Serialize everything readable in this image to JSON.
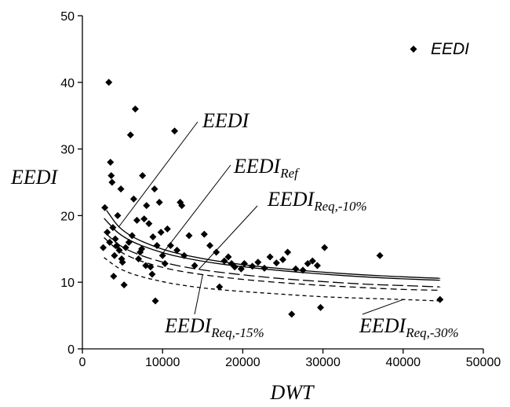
{
  "chart_data": {
    "type": "scatter",
    "x_axis": {
      "title": "DWT",
      "range": [
        0,
        50000
      ],
      "ticks": [
        0,
        10000,
        20000,
        30000,
        40000,
        50000
      ],
      "tick_labels": [
        "0",
        "10000",
        "20000",
        "30000",
        "40000",
        "50000"
      ]
    },
    "y_axis": {
      "title": "EEDI",
      "range": [
        0,
        50
      ],
      "ticks": [
        0,
        10,
        20,
        30,
        40,
        50
      ],
      "tick_labels": [
        "0",
        "10",
        "20",
        "30",
        "40",
        "50"
      ]
    },
    "grid": false,
    "legend": {
      "position": "top-right",
      "entries": [
        {
          "label": "EEDI",
          "marker": "diamond"
        }
      ]
    },
    "series": [
      {
        "name": "EEDI",
        "kind": "points",
        "marker": "diamond",
        "color": "#000000",
        "points": [
          [
            2600,
            15.2
          ],
          [
            2800,
            21.2
          ],
          [
            3100,
            17.5
          ],
          [
            3300,
            40.0
          ],
          [
            3400,
            16.0
          ],
          [
            3500,
            28.0
          ],
          [
            3600,
            26.0
          ],
          [
            3700,
            25.0
          ],
          [
            3800,
            18.2
          ],
          [
            3900,
            10.9
          ],
          [
            4000,
            14.0
          ],
          [
            4100,
            16.5
          ],
          [
            4300,
            15.5
          ],
          [
            4400,
            20.0
          ],
          [
            4600,
            14.8
          ],
          [
            4800,
            24.0
          ],
          [
            4900,
            13.5
          ],
          [
            5000,
            13.0
          ],
          [
            5200,
            9.6
          ],
          [
            5400,
            15.2
          ],
          [
            5800,
            16.0
          ],
          [
            6000,
            32.1
          ],
          [
            6200,
            17.0
          ],
          [
            6400,
            22.5
          ],
          [
            6600,
            36.0
          ],
          [
            6800,
            19.3
          ],
          [
            7000,
            13.5
          ],
          [
            7200,
            14.5
          ],
          [
            7400,
            15.0
          ],
          [
            7500,
            26.0
          ],
          [
            7700,
            19.5
          ],
          [
            7900,
            12.5
          ],
          [
            8000,
            21.5
          ],
          [
            8300,
            18.8
          ],
          [
            8500,
            12.3
          ],
          [
            8700,
            11.2
          ],
          [
            8800,
            16.8
          ],
          [
            9000,
            24.0
          ],
          [
            9100,
            7.2
          ],
          [
            9300,
            15.5
          ],
          [
            9600,
            22.0
          ],
          [
            9800,
            17.5
          ],
          [
            10000,
            14.0
          ],
          [
            10300,
            12.8
          ],
          [
            10600,
            18.0
          ],
          [
            11000,
            15.5
          ],
          [
            11500,
            32.7
          ],
          [
            11800,
            14.8
          ],
          [
            12200,
            22.0
          ],
          [
            12400,
            21.5
          ],
          [
            12700,
            14.0
          ],
          [
            13300,
            17.0
          ],
          [
            14000,
            12.5
          ],
          [
            15200,
            17.2
          ],
          [
            15900,
            15.5
          ],
          [
            16700,
            14.5
          ],
          [
            17100,
            9.3
          ],
          [
            17700,
            13.2
          ],
          [
            18200,
            13.8
          ],
          [
            18600,
            12.8
          ],
          [
            19000,
            12.3
          ],
          [
            19800,
            12.0
          ],
          [
            20200,
            12.8
          ],
          [
            21200,
            12.4
          ],
          [
            21900,
            13.0
          ],
          [
            22700,
            12.1
          ],
          [
            23400,
            13.8
          ],
          [
            24200,
            12.9
          ],
          [
            25000,
            13.4
          ],
          [
            25600,
            14.5
          ],
          [
            26100,
            5.2
          ],
          [
            26600,
            12.0
          ],
          [
            27500,
            11.8
          ],
          [
            28100,
            12.8
          ],
          [
            28700,
            13.2
          ],
          [
            29300,
            12.5
          ],
          [
            29700,
            6.2
          ],
          [
            30200,
            15.2
          ],
          [
            37100,
            14.0
          ],
          [
            44600,
            7.4
          ]
        ]
      },
      {
        "name": "EEDI",
        "kind": "curve",
        "dash": "solid",
        "points": [
          [
            3000,
            20.8
          ],
          [
            5000,
            17.4
          ],
          [
            10000,
            14.8
          ],
          [
            15000,
            13.5
          ],
          [
            20000,
            12.6
          ],
          [
            25000,
            12.0
          ],
          [
            30000,
            11.5
          ],
          [
            35000,
            11.1
          ],
          [
            40000,
            10.8
          ],
          [
            44600,
            10.6
          ]
        ]
      },
      {
        "name": "EEDIRef",
        "kind": "curve",
        "dash": "solid",
        "points": [
          [
            2700,
            19.6
          ],
          [
            5000,
            16.6
          ],
          [
            10000,
            14.3
          ],
          [
            15000,
            13.1
          ],
          [
            20000,
            12.3
          ],
          [
            25000,
            11.7
          ],
          [
            30000,
            11.2
          ],
          [
            35000,
            10.8
          ],
          [
            40000,
            10.5
          ],
          [
            44600,
            10.3
          ]
        ]
      },
      {
        "name": "EEDIReq,-10%",
        "kind": "curve",
        "dash": "long-dash",
        "points": [
          [
            2700,
            17.6
          ],
          [
            5000,
            15.0
          ],
          [
            10000,
            12.9
          ],
          [
            15000,
            11.8
          ],
          [
            20000,
            11.1
          ],
          [
            25000,
            10.5
          ],
          [
            30000,
            10.1
          ],
          [
            35000,
            9.7
          ],
          [
            40000,
            9.5
          ],
          [
            44600,
            9.3
          ]
        ]
      },
      {
        "name": "EEDIReq,-15%",
        "kind": "curve",
        "dash": "dash",
        "points": [
          [
            2700,
            16.7
          ],
          [
            5000,
            14.1
          ],
          [
            10000,
            12.1
          ],
          [
            15000,
            11.1
          ],
          [
            20000,
            10.4
          ],
          [
            25000,
            9.9
          ],
          [
            30000,
            9.5
          ],
          [
            35000,
            9.2
          ],
          [
            40000,
            8.9
          ],
          [
            44600,
            8.8
          ]
        ]
      },
      {
        "name": "EEDIReq,-30%",
        "kind": "curve",
        "dash": "short-dash",
        "points": [
          [
            2700,
            13.7
          ],
          [
            5000,
            11.6
          ],
          [
            10000,
            10.0
          ],
          [
            15000,
            9.1
          ],
          [
            20000,
            8.6
          ],
          [
            25000,
            8.2
          ],
          [
            30000,
            7.8
          ],
          [
            35000,
            7.6
          ],
          [
            40000,
            7.4
          ],
          [
            44600,
            7.2
          ]
        ]
      }
    ],
    "annotations": [
      {
        "main": "EEDI",
        "sub": ""
      },
      {
        "main": "EEDI",
        "sub": "Ref"
      },
      {
        "main": "EEDI",
        "sub": "Req,-10%"
      },
      {
        "main": "EEDI",
        "sub": "Req,-15%"
      },
      {
        "main": "EEDI",
        "sub": "Req,-30%"
      }
    ]
  }
}
